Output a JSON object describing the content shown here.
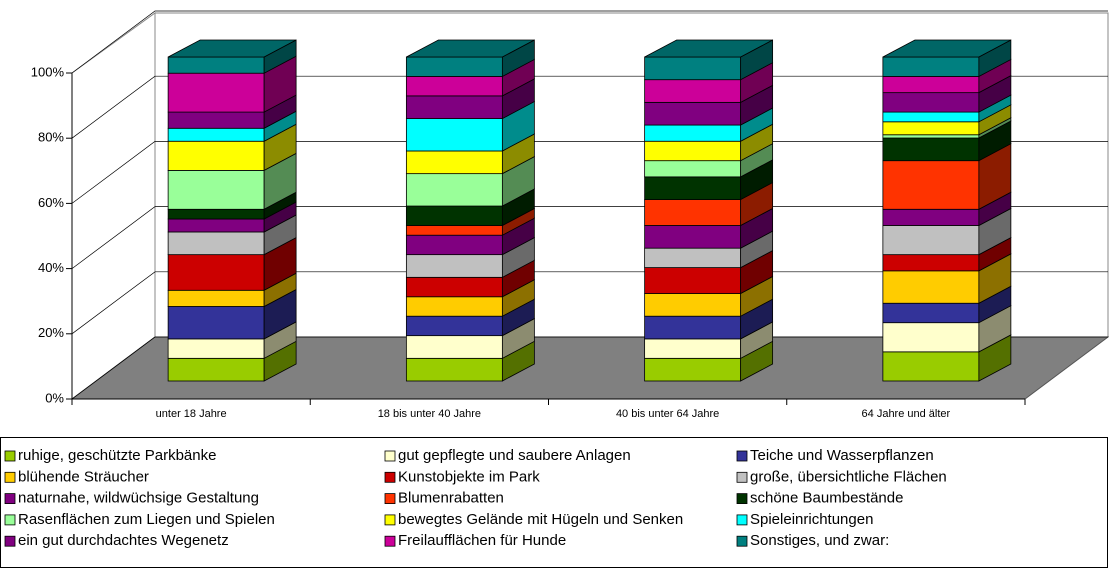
{
  "chart_data": {
    "type": "bar3d_stacked",
    "categories": [
      "unter 18 Jahre",
      "18 bis unter 40 Jahre",
      "40 bis unter 64 Jahre",
      "64 Jahre und älter"
    ],
    "ylim": [
      0,
      100
    ],
    "yticks": [
      {
        "value": 0,
        "label": "0%"
      },
      {
        "value": 20,
        "label": "20%"
      },
      {
        "value": 40,
        "label": "40%"
      },
      {
        "value": 60,
        "label": "60%"
      },
      {
        "value": 80,
        "label": "80%"
      },
      {
        "value": 100,
        "label": "100%"
      }
    ],
    "series": [
      {
        "name": "ruhige, geschützte Parkbänke",
        "color": "#99cc00",
        "values": [
          7,
          7,
          7,
          9
        ]
      },
      {
        "name": "gut gepflegte und saubere Anlagen",
        "color": "#ffffcc",
        "values": [
          6,
          7,
          6,
          9
        ]
      },
      {
        "name": "Teiche und Wasserpflanzen",
        "color": "#333399",
        "values": [
          10,
          6,
          7,
          6
        ]
      },
      {
        "name": "blühende Sträucher",
        "color": "#ffcc00",
        "values": [
          5,
          6,
          7,
          10
        ]
      },
      {
        "name": "Kunstobjekte im Park",
        "color": "#cc0000",
        "values": [
          11,
          6,
          8,
          5
        ]
      },
      {
        "name": "große, übersichtliche Flächen",
        "color": "#c0c0c0",
        "values": [
          7,
          7,
          6,
          9
        ]
      },
      {
        "name": "naturnahe, wildwüchsige Gestaltung",
        "color": "#800080",
        "values": [
          4,
          6,
          7,
          5
        ]
      },
      {
        "name": "Blumenrabatten",
        "color": "#ff3300",
        "values": [
          0,
          3,
          8,
          15
        ]
      },
      {
        "name": "schöne Baumbestände",
        "color": "#003300",
        "values": [
          3,
          6,
          7,
          7
        ]
      },
      {
        "name": "Rasenflächen zum Liegen und Spielen",
        "color": "#99ff99",
        "values": [
          12,
          10,
          5,
          1
        ]
      },
      {
        "name": "bewegtes Gelände mit Hügeln und Senken",
        "color": "#ffff00",
        "values": [
          9,
          7,
          6,
          4
        ]
      },
      {
        "name": "Spieleinrichtungen",
        "color": "#00ffff",
        "values": [
          4,
          10,
          5,
          3
        ]
      },
      {
        "name": "ein gut durchdachtes Wegenetz",
        "color": "#800080",
        "values": [
          5,
          7,
          7,
          6
        ]
      },
      {
        "name": "Freilaufflächen für Hunde",
        "color": "#cc0099",
        "values": [
          12,
          6,
          7,
          5
        ]
      },
      {
        "name": "Sonstiges, und zwar:",
        "color": "#008080",
        "values": [
          5,
          6,
          7,
          6
        ]
      }
    ]
  }
}
